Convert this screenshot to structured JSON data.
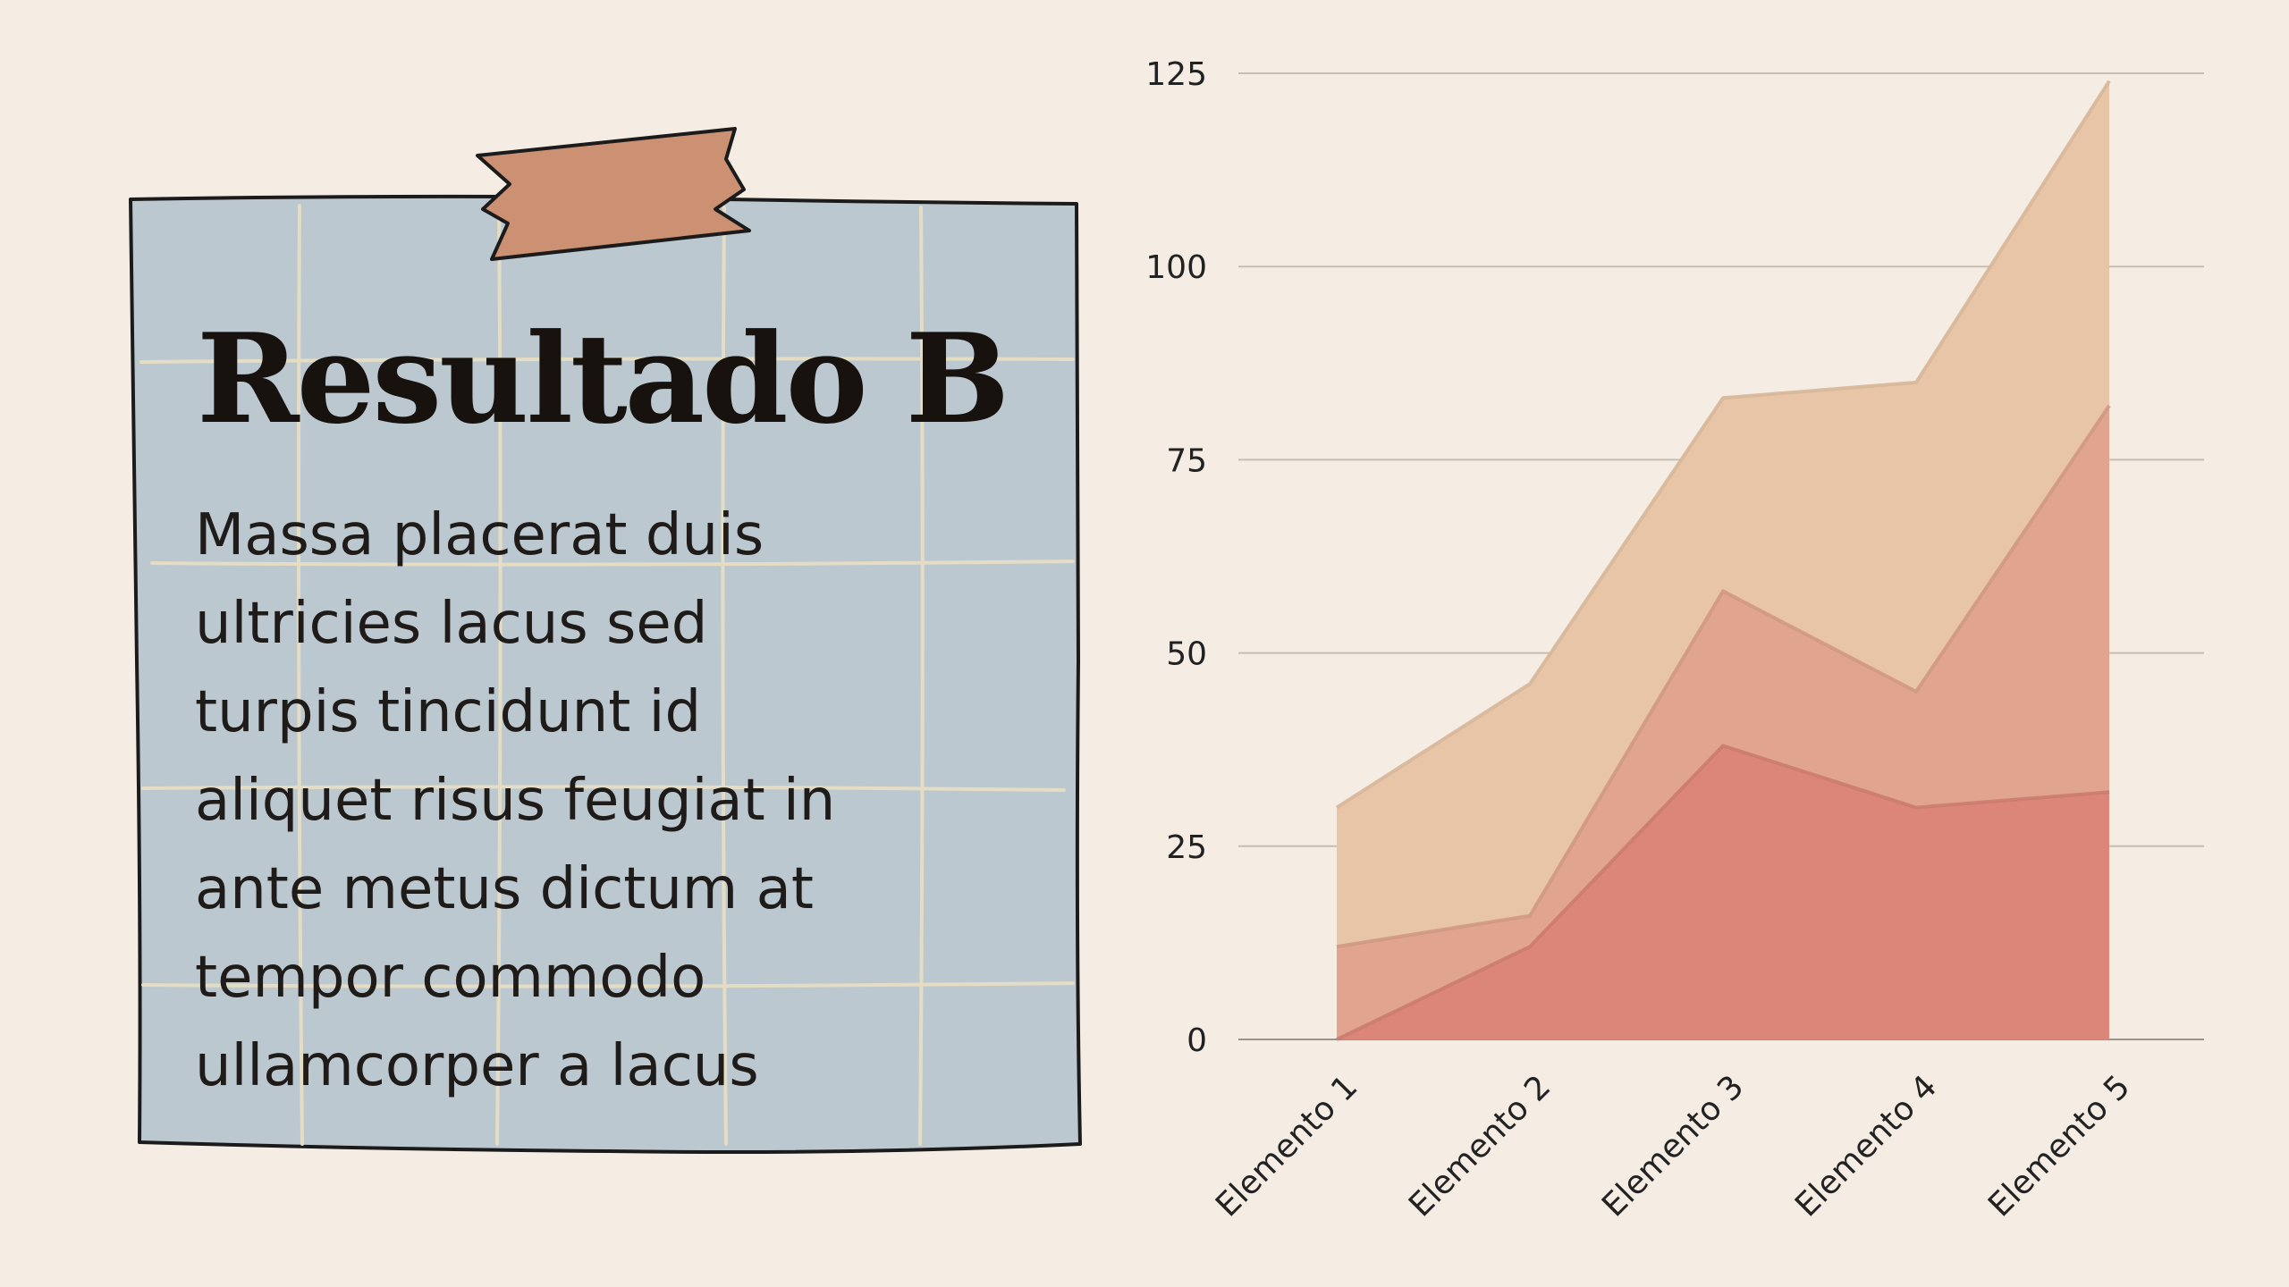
{
  "card": {
    "title": "Resultado B",
    "body": "Massa placerat duis\nultricies lacus sed\nturpis tincidunt id\naliquet risus feugiat in\n ante metus dictum at\ntempor commodo\nullamcorper a lacus",
    "colors": {
      "paper": "#bcc8d0",
      "tape": "#cc9173",
      "grid": "#e5dcc4",
      "outline": "#1b1b1b"
    }
  },
  "chart_data": {
    "type": "area",
    "stacked": true,
    "categories": [
      "Elemento 1",
      "Elemento 2",
      "Elemento 3",
      "Elemento 4",
      "Elemento 5"
    ],
    "series": [
      {
        "values": [
          0,
          12,
          38,
          30,
          32
        ],
        "color": "#db8678"
      },
      {
        "values": [
          12,
          4,
          20,
          15,
          50
        ],
        "color": "#e1a58f"
      },
      {
        "values": [
          18,
          30,
          25,
          40,
          42
        ],
        "color": "#e8c5a6"
      }
    ],
    "yticks": [
      0,
      25,
      50,
      75,
      100,
      125
    ],
    "ylim": [
      0,
      125
    ],
    "grid": true,
    "legend": "none",
    "xlabel": "",
    "ylabel": "",
    "title": ""
  }
}
